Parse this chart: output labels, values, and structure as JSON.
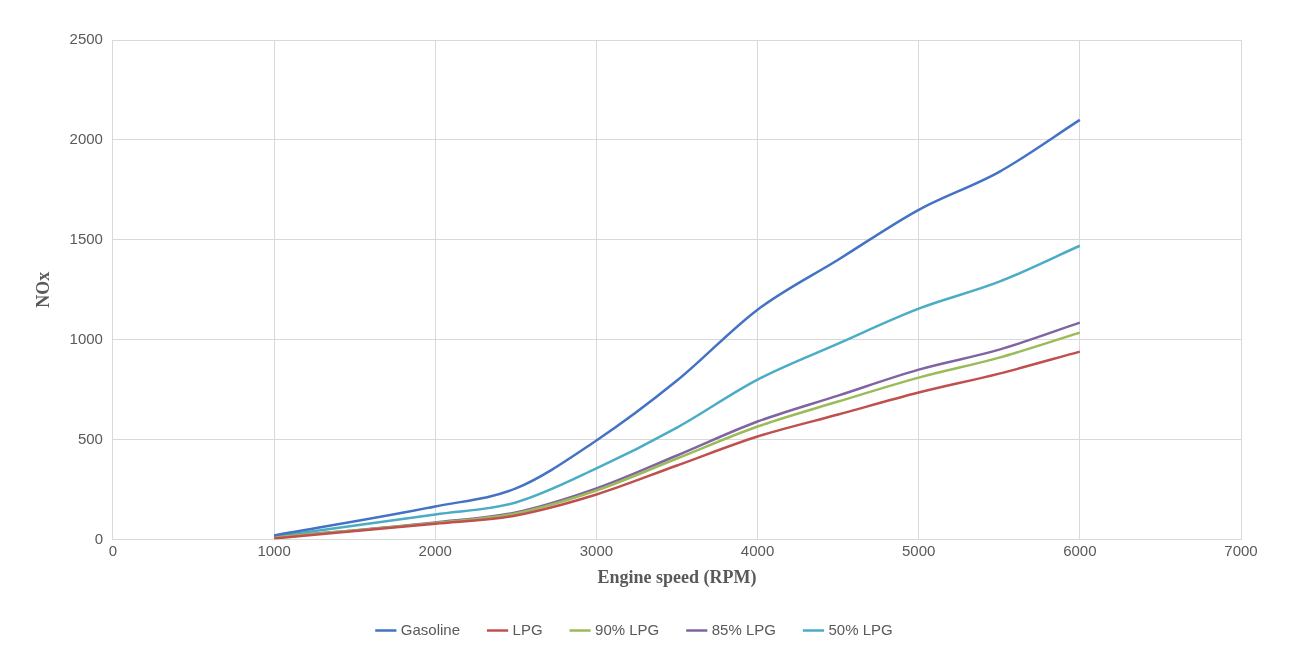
{
  "chart_data": {
    "type": "line",
    "xlabel": "Engine speed (RPM)",
    "ylabel": "NOx",
    "x": [
      1000,
      2000,
      2500,
      3000,
      3500,
      4000,
      4500,
      5000,
      5500,
      6000
    ],
    "series": [
      {
        "name": "Gasoline",
        "color": "#4472c4",
        "values": [
          20,
          165,
          255,
          495,
          795,
          1150,
          1400,
          1650,
          1840,
          2100
        ]
      },
      {
        "name": "LPG",
        "color": "#c0504d",
        "values": [
          5,
          78,
          120,
          225,
          370,
          515,
          625,
          735,
          830,
          940
        ]
      },
      {
        "name": "90% LPG",
        "color": "#9bbb59",
        "values": [
          10,
          82,
          130,
          245,
          405,
          565,
          690,
          810,
          910,
          1035
        ]
      },
      {
        "name": "85% LPG",
        "color": "#8064a2",
        "values": [
          10,
          85,
          135,
          255,
          420,
          590,
          720,
          850,
          950,
          1085
        ]
      },
      {
        "name": "50% LPG",
        "color": "#4bacc6",
        "values": [
          15,
          125,
          185,
          355,
          560,
          800,
          980,
          1155,
          1290,
          1470
        ]
      }
    ],
    "xlim": [
      0,
      7000
    ],
    "xticks": [
      0,
      1000,
      2000,
      3000,
      4000,
      5000,
      6000,
      7000
    ],
    "ylim": [
      0,
      2500
    ],
    "yticks": [
      0,
      500,
      1000,
      1500,
      2000,
      2500
    ],
    "grid": true,
    "legend": "bottom",
    "marker": "none",
    "line_style": "solid"
  }
}
